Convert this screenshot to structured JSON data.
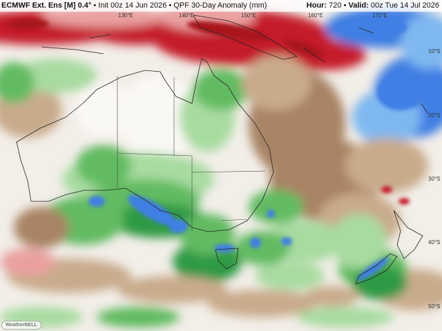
{
  "header": {
    "separator": "•",
    "model": "ECMWF Ext. Ens [M] 0.4°",
    "init": "Init 00z 14 Jun 2026",
    "product": "QPF 30-Day Anomaly (mm)",
    "hour_label": "Hour:",
    "hour": "720",
    "valid_label": "Valid:",
    "valid": "00z Tue 14 Jul 2026"
  },
  "lon_labels": [
    "130°E",
    "140°E",
    "150°E",
    "160°E",
    "170°E"
  ],
  "lat_labels": [
    "10°S",
    "20°S",
    "30°S",
    "40°S",
    "50°S"
  ],
  "watermark": "WeatherBELL"
}
